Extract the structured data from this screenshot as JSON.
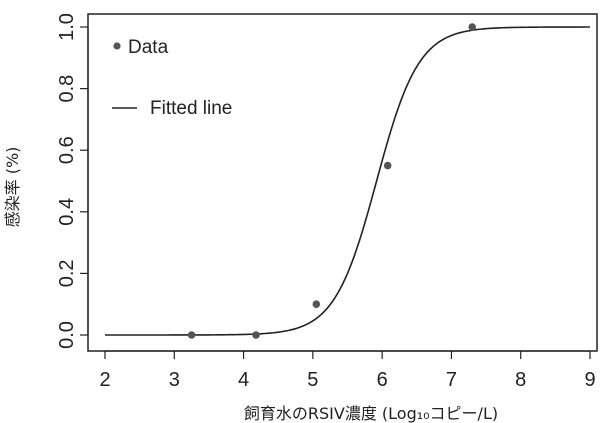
{
  "chart_data": {
    "type": "scatter",
    "xlabel": "飼育水のRSIV濃度 (Log₁₀コピー/L)",
    "ylabel": "感染率 (%)",
    "xlim": [
      2,
      9
    ],
    "ylim": [
      0,
      1
    ],
    "x_ticks": [
      "2",
      "3",
      "4",
      "5",
      "6",
      "7",
      "8",
      "9"
    ],
    "y_ticks": [
      "0.0",
      "0.2",
      "0.4",
      "0.6",
      "0.8",
      "1.0"
    ],
    "grid": false,
    "legend_position": "top-left",
    "series": [
      {
        "name": "Data",
        "kind": "points",
        "color": "#555555",
        "x": [
          3.25,
          4.18,
          5.05,
          6.08,
          7.3
        ],
        "y": [
          0.0,
          0.0,
          0.1,
          0.55,
          1.0
        ]
      },
      {
        "name": "Fitted line",
        "kind": "line",
        "color": "#222222",
        "model": "logistic",
        "midpoint": 5.92,
        "slope": 3.3,
        "x_range": [
          2.0,
          9.0
        ]
      }
    ]
  }
}
